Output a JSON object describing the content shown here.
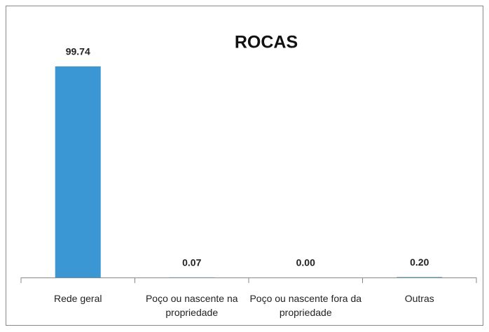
{
  "chart_data": {
    "type": "bar",
    "title": "ROCAS",
    "categories": [
      "Rede geral",
      "Poço ou nascente na propriedade",
      "Poço ou nascente fora da propriedade",
      "Outras"
    ],
    "values": [
      99.74,
      0.07,
      0.0,
      0.2
    ],
    "value_labels": [
      "99.74",
      "0.07",
      "0.00",
      "0.20"
    ],
    "color": "#3a97d3"
  }
}
